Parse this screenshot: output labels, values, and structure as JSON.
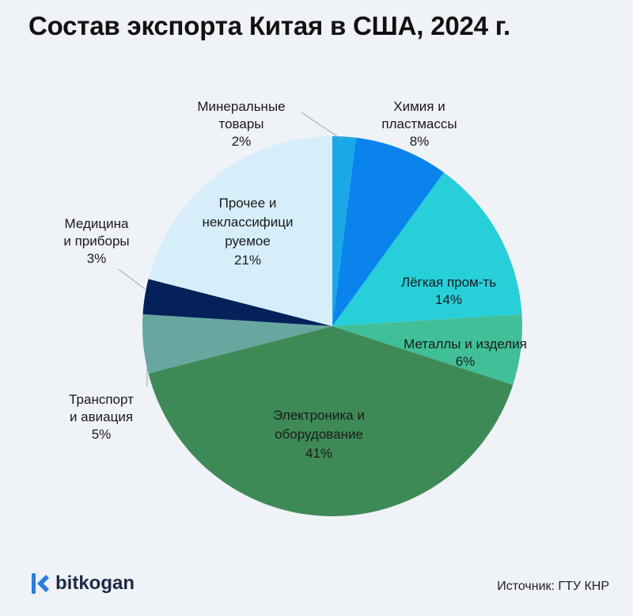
{
  "chart_data": {
    "type": "pie",
    "title": "Состав экспорта Китая в США, 2024 г.",
    "slices": [
      {
        "name": "Минеральные товары",
        "lines": [
          "Минеральные",
          "товары"
        ],
        "value": 2,
        "value_label": "2%",
        "color": "#1aa8e6"
      },
      {
        "name": "Химия и пластмассы",
        "lines": [
          "Химия и",
          "пластмассы"
        ],
        "value": 8,
        "value_label": "8%",
        "color": "#0a84ec"
      },
      {
        "name": "Лёгкая пром-ть",
        "lines": [
          "Лёгкая пром-ть"
        ],
        "value": 14,
        "value_label": "14%",
        "color": "#27cfd9"
      },
      {
        "name": "Металлы и изделия",
        "lines": [
          "Металлы и изделия"
        ],
        "value": 6,
        "value_label": "6%",
        "color": "#41bf98"
      },
      {
        "name": "Электроника и оборудование",
        "lines": [
          "Электроника и",
          "оборудование"
        ],
        "value": 41,
        "value_label": "41%",
        "color": "#3e8a56"
      },
      {
        "name": "Транспорт и авиация",
        "lines": [
          "Транспорт",
          "и авиация"
        ],
        "value": 5,
        "value_label": "5%",
        "color": "#67a79f"
      },
      {
        "name": "Медицина и приборы",
        "lines": [
          "Медицина",
          "и приборы"
        ],
        "value": 3,
        "value_label": "3%",
        "color": "#04215a"
      },
      {
        "name": "Прочее и неклассифицируемое",
        "lines": [
          "Прочее и",
          "неклассифици",
          "руемое"
        ],
        "value": 21,
        "value_label": "21%",
        "color": "#d5eefa"
      }
    ]
  },
  "footer": {
    "brand": "bitkogan",
    "source": "Источник: ГТУ КНР"
  },
  "colors": {
    "background": "#eff2f7",
    "brand": "#2f7de1"
  }
}
